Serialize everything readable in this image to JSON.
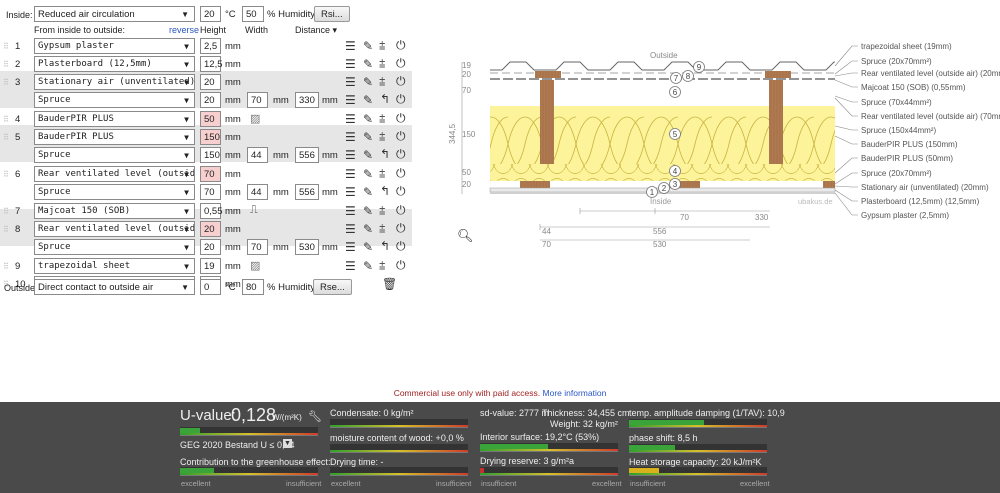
{
  "inside": {
    "label": "Inside:",
    "condition": "Reduced air circulation",
    "temp": "20",
    "temp_unit": "°C",
    "humidity": "50",
    "humidity_unit": "% Humidity",
    "button": "Rsi..."
  },
  "header": {
    "from_label": "From inside to outside:",
    "reverse": "reverse",
    "height": "Height",
    "width": "Width",
    "distance": "Distance ▾"
  },
  "layers": [
    {
      "n": "1",
      "material": "Gypsum plaster",
      "height": "2,5",
      "unit": "mm"
    },
    {
      "n": "2",
      "material": "Plasterboard (12,5mm)",
      "height": "12,5",
      "unit": "mm"
    },
    {
      "n": "3",
      "material": "Stationary air (unventilated)",
      "height": "20",
      "unit": "mm",
      "sub": {
        "material": "Spruce",
        "height": "20",
        "width": "70",
        "distance": "330"
      }
    },
    {
      "n": "4",
      "material": "BauderPIR PLUS",
      "height": "50",
      "unit": "mm"
    },
    {
      "n": "5",
      "material": "BauderPIR PLUS",
      "height": "150",
      "unit": "mm",
      "sub": {
        "material": "Spruce",
        "height": "150",
        "width": "44",
        "distance": "556"
      }
    },
    {
      "n": "6",
      "material": "Rear ventilated level (outside air)",
      "height": "70",
      "unit": "mm",
      "sub": {
        "material": "Spruce",
        "height": "70",
        "width": "44",
        "distance": "556"
      }
    },
    {
      "n": "7",
      "material": "Majcoat 150 (SOB)",
      "height": "0,55",
      "unit": "mm"
    },
    {
      "n": "8",
      "material": "Rear ventilated level (outside air)",
      "height": "20",
      "unit": "mm",
      "sub": {
        "material": "Spruce",
        "height": "20",
        "width": "70",
        "distance": "530"
      }
    },
    {
      "n": "9",
      "material": "trapezoidal sheet",
      "height": "19",
      "unit": "mm"
    },
    {
      "n": "10",
      "material": "",
      "height": "",
      "unit": "mm"
    }
  ],
  "mm": "mm",
  "outside": {
    "label": "Outside",
    "condition": "Direct contact to outside air",
    "temp": "0",
    "temp_unit": "°C",
    "humidity": "80",
    "humidity_unit": "% Humidity",
    "button": "Rse..."
  },
  "diagram": {
    "outside": "Outside",
    "inside": "Inside",
    "watermark": "ubakus.de",
    "thickness": "344,5",
    "left_dims": [
      "19",
      "20",
      "70",
      "150",
      "50",
      "20"
    ],
    "bottom_dims": [
      "70",
      "330",
      "44",
      "556",
      "70",
      "530"
    ],
    "legend": [
      "trapezoidal sheet (19mm)",
      "Spruce (20x70mm²)",
      "Rear ventilated level (outside air) (20mm)",
      "Majcoat 150 (SOB) (0,55mm)",
      "Spruce (70x44mm²)",
      "Rear ventilated level (outside air) (70mm)",
      "Spruce (150x44mm²)",
      "BauderPIR PLUS (150mm)",
      "BauderPIR PLUS (50mm)",
      "Spruce (20x70mm²)",
      "Stationary air (unventilated) (20mm)",
      "Plasterboard (12,5mm) (12,5mm)",
      "Gypsum plaster (2,5mm)"
    ],
    "markers": [
      "1",
      "2",
      "3",
      "4",
      "5",
      "6",
      "7",
      "8",
      "9"
    ]
  },
  "notice": {
    "text": "Commercial use only with paid access.",
    "link": "More information"
  },
  "results": {
    "uvalue_label": "U-value:",
    "uvalue": "0,128",
    "uvalue_unit": "W/(m²K)",
    "geg": "GEG 2020 Bestand U ≤ 0,24",
    "greenhouse": "Contribution to the greenhouse effect:",
    "excellent": "excellent",
    "insufficient": "insufficient",
    "condensate": "Condensate: 0 kg/m²",
    "moisture": "moisture content of wood: +0,0 %",
    "drying": "Drying time: -",
    "sd": "sd-value: 2777 m",
    "thickness": "Thickness: 34,455 cm",
    "weight": "Weight: 32 kg/m²",
    "interior": "Interior surface: 19,2°C (53%)",
    "drying_reserve": "Drying reserve: 3 g/m²a",
    "tav": "temp. amplitude damping (1/TAV): 10,9",
    "phase": "phase shift: 8,5 h",
    "heat": "Heat storage capacity: 20 kJ/m²K",
    "colors": {
      "good": "#3aa33a",
      "warn": "#d8b21c",
      "bad": "#c83030"
    }
  }
}
